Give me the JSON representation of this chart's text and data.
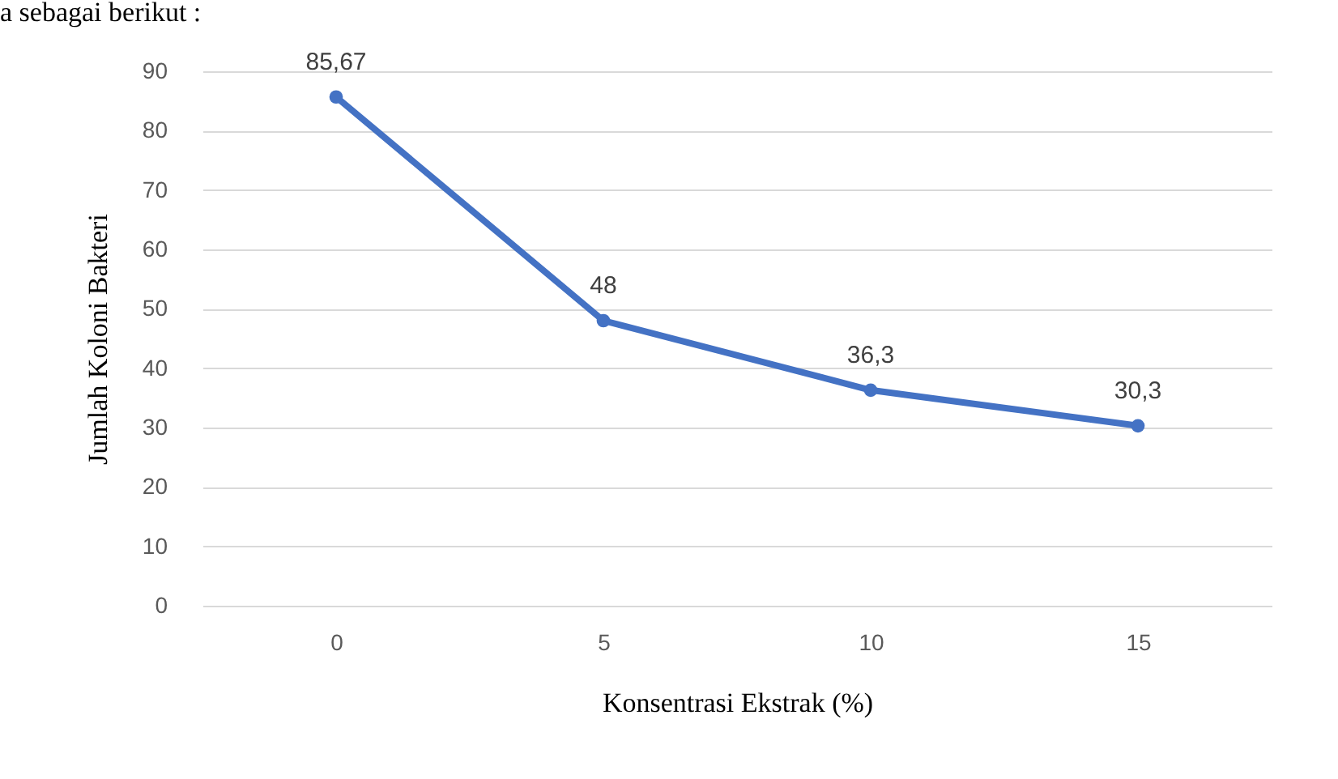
{
  "chart_data": {
    "type": "line",
    "xlabel": "Konsentrasi Ekstrak (%)",
    "ylabel": "Jumlah Koloni Bakteri",
    "annotations": [
      "a sebagai berikut :"
    ],
    "categories": [
      "0",
      "5",
      "10",
      "15"
    ],
    "series": [
      {
        "color": "#4472c4",
        "values": [
          85.67,
          48,
          36.3,
          30.3
        ],
        "value_labels": [
          "85,67",
          "48",
          "36,3",
          "30,3"
        ]
      }
    ],
    "ylim": [
      0,
      90
    ],
    "yticks": [
      0,
      10,
      20,
      30,
      40,
      50,
      60,
      70,
      80,
      90
    ],
    "grid": "y",
    "marker": "circle",
    "line_style": "solid",
    "legend": false
  }
}
